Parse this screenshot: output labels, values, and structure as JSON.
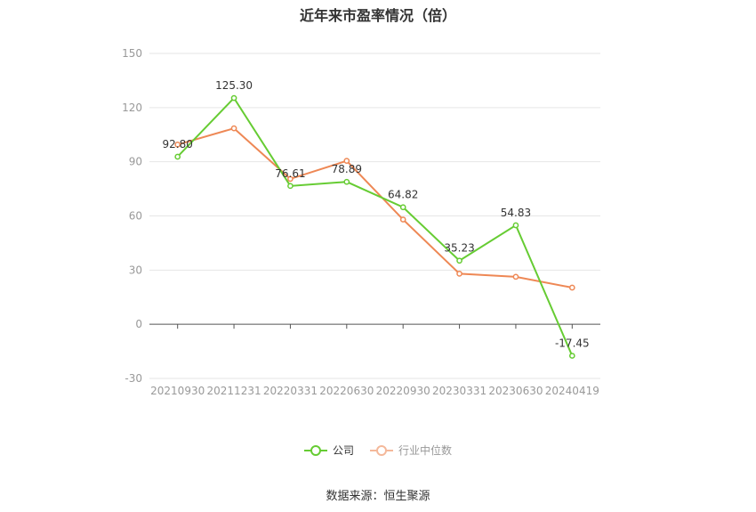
{
  "chart_data": {
    "type": "line",
    "title": "近年来市盈率情况（倍）",
    "categories": [
      "20210930",
      "20211231",
      "20220331",
      "20220630",
      "20220930",
      "20230331",
      "20230630",
      "20240419"
    ],
    "ylim": [
      -30,
      150
    ],
    "yticks": [
      150,
      120,
      90,
      60,
      30,
      0,
      -30
    ],
    "ytick_labels": [
      "150",
      "120",
      "90",
      "60",
      "30",
      "0",
      "-30"
    ],
    "grid": true,
    "legend_position": "bottom",
    "series": [
      {
        "name": "公司",
        "color": "#66cc33",
        "values": [
          92.8,
          125.3,
          76.61,
          78.89,
          64.82,
          35.23,
          54.83,
          -17.45
        ],
        "labels": [
          "92.80",
          "125.30",
          "76.61",
          "78.89",
          "64.82",
          "35.23",
          "54.83",
          "-17.45"
        ]
      },
      {
        "name": "行业中位数",
        "color": "#ee8855",
        "values": [
          99.5,
          108.5,
          80.5,
          90.5,
          58.0,
          28.0,
          26.3,
          20.3
        ]
      }
    ]
  },
  "source_text": "数据来源：恒生聚源"
}
